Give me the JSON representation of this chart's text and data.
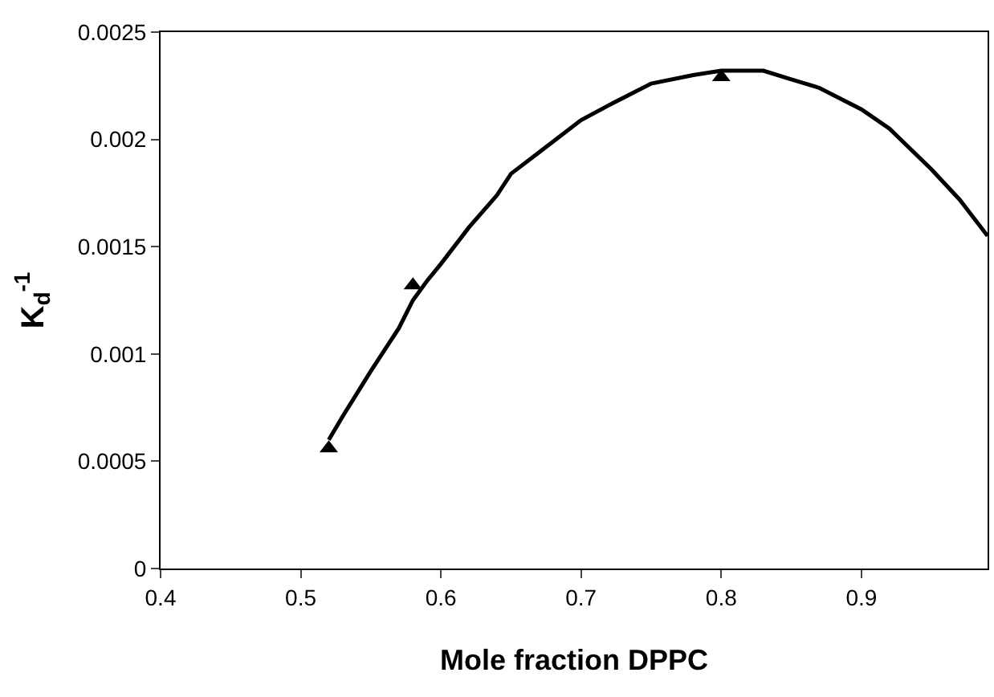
{
  "chart_data": {
    "type": "scatter",
    "xlabel": "Mole fraction DPPC",
    "ylabel": "K$_{d}$$^{-1}$",
    "xlim": [
      0.4,
      0.99
    ],
    "xticks": [
      0.4,
      0.5,
      0.6,
      0.7,
      0.8,
      0.9
    ],
    "ylim": [
      0,
      0.0025
    ],
    "yticks": [
      0,
      0.0005,
      0.001,
      0.0015,
      0.002,
      0.0025
    ],
    "series": [
      {
        "color": "#000000",
        "marker": "triangle",
        "x": [
          0.52,
          0.58,
          0.8
        ],
        "values": [
          0.00056,
          0.00132,
          0.00229
        ]
      },
      {
        "type": "line",
        "color": "#000000",
        "marker": "none",
        "line_style": "solid",
        "x": [
          0.52,
          0.53,
          0.55,
          0.56,
          0.57,
          0.58,
          0.59,
          0.6,
          0.62,
          0.64,
          0.65,
          0.67,
          0.7,
          0.72,
          0.75,
          0.78,
          0.8,
          0.82,
          0.83,
          0.85,
          0.87,
          0.9,
          0.92,
          0.95,
          0.97,
          0.99
        ],
        "values": [
          0.0006,
          0.00071,
          0.00092,
          0.00102,
          0.00112,
          0.00125,
          0.00134,
          0.00142,
          0.00159,
          0.00174,
          0.00184,
          0.00194,
          0.00209,
          0.00216,
          0.00226,
          0.0023,
          0.00232,
          0.00232,
          0.00232,
          0.00228,
          0.00224,
          0.00214,
          0.00205,
          0.00186,
          0.00172,
          0.00155
        ]
      }
    ]
  }
}
